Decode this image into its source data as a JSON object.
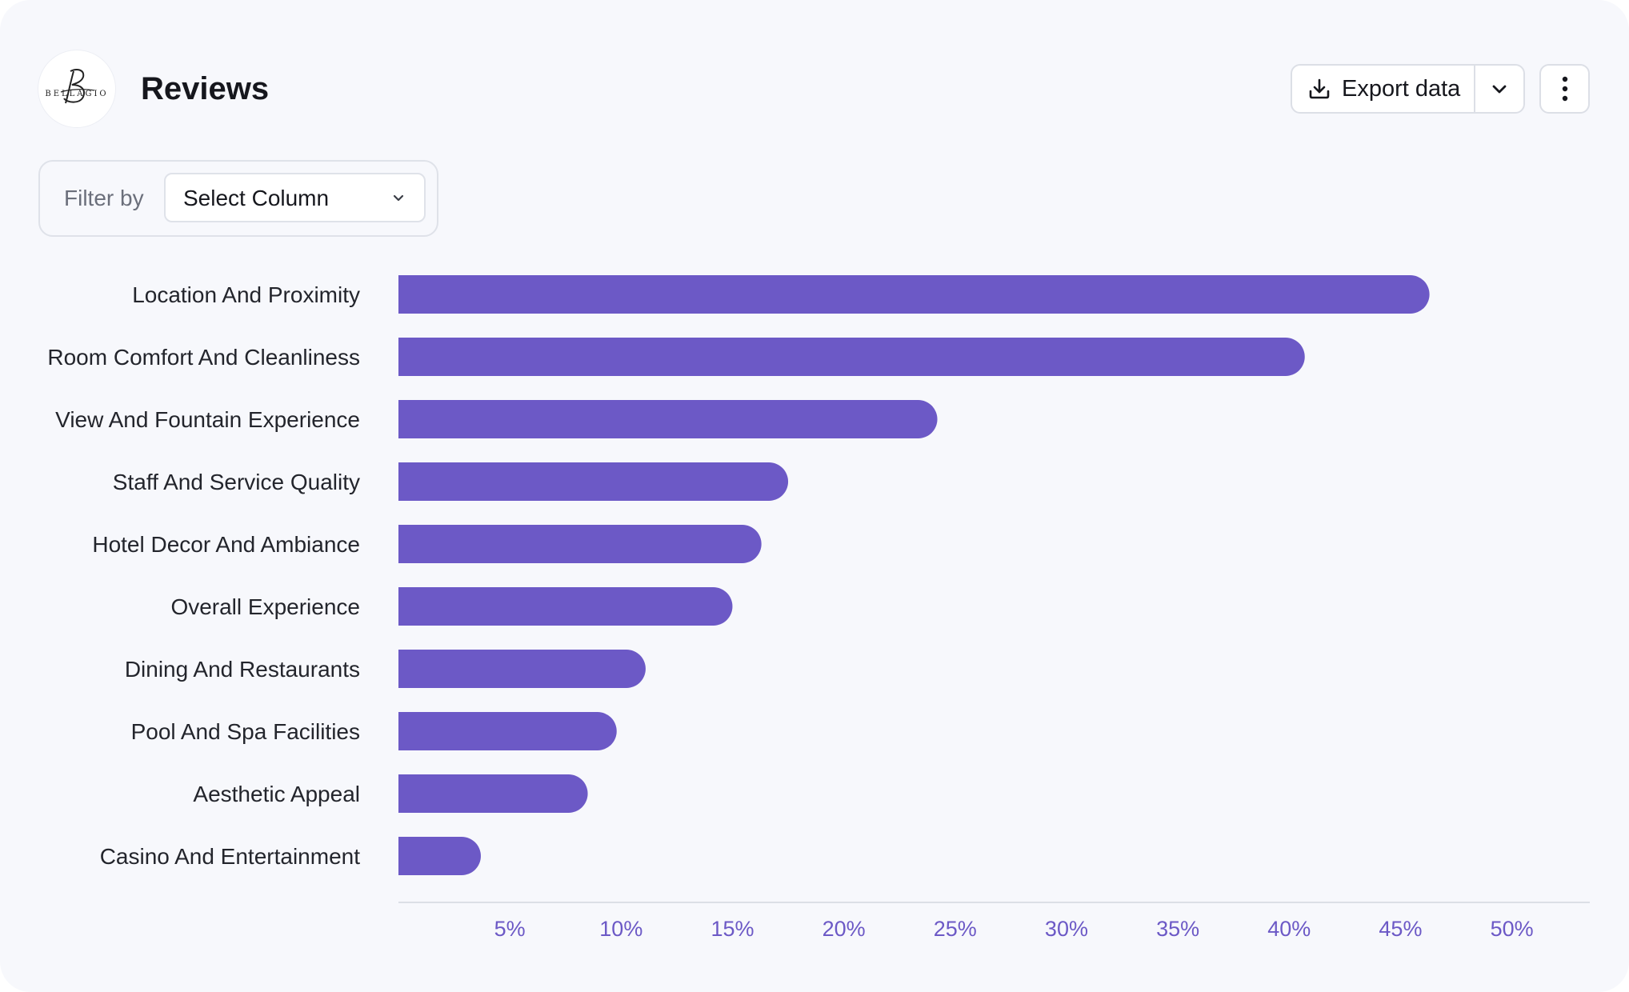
{
  "header": {
    "logo_text": "BELLAGIO",
    "title": "Reviews"
  },
  "toolbar": {
    "export_label": "Export data",
    "icons": {
      "export": "download-icon",
      "caret": "chevron-down-icon",
      "more": "more-vertical-icon"
    }
  },
  "filter": {
    "label": "Filter by",
    "select_value": "Select Column"
  },
  "colors": {
    "bar": "#6c59c6",
    "tick_label": "#6c59c6",
    "category_label": "#23252c",
    "axis": "#dcdfe6"
  },
  "chart_data": {
    "type": "bar",
    "orientation": "horizontal",
    "title": "",
    "xlabel": "",
    "ylabel": "",
    "categories": [
      "Location And Proximity",
      "Room Comfort And Cleanliness",
      "View And Fountain Experience",
      "Staff And Service Quality",
      "Hotel Decor And Ambiance",
      "Overall Experience",
      "Dining And Restaurants",
      "Pool And Spa Facilities",
      "Aesthetic Appeal",
      "Casino And Entertainment"
    ],
    "values": [
      46.3,
      40.7,
      24.2,
      17.5,
      16.3,
      15.0,
      11.1,
      9.8,
      8.5,
      3.7
    ],
    "xlim": [
      0,
      53.5
    ],
    "ticks": [
      5,
      10,
      15,
      20,
      25,
      30,
      35,
      40,
      45,
      50
    ],
    "tick_labels": [
      "5%",
      "10%",
      "15%",
      "20%",
      "25%",
      "30%",
      "35%",
      "40%",
      "45%",
      "50%"
    ],
    "grid": false,
    "legend": "none"
  }
}
